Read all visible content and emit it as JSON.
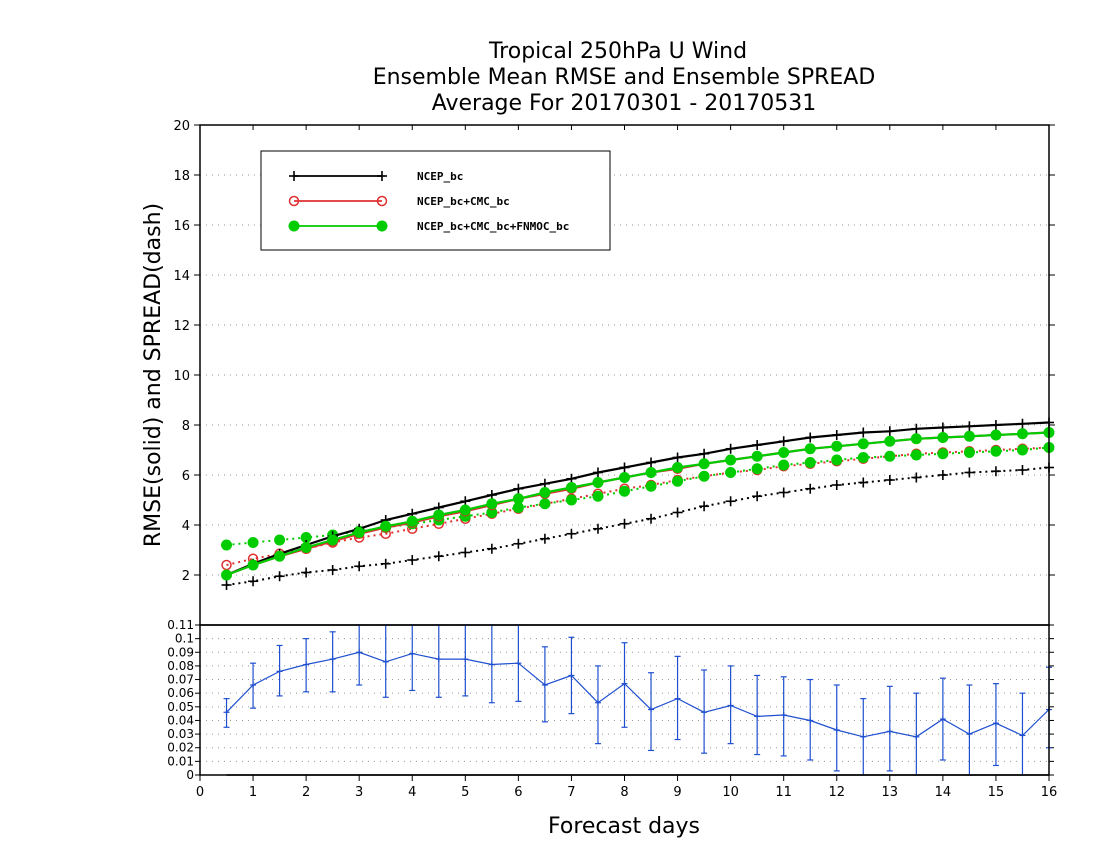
{
  "chart_data": [
    {
      "type": "line",
      "title": [
        "Tropical 250hPa U Wind",
        "Ensemble Mean RMSE and Ensemble SPREAD",
        "Average For 20170301 - 20170531"
      ],
      "ylabel": "RMSE(solid)  and  SPREAD(dash)",
      "xlim": [
        0,
        16
      ],
      "ylim": [
        0,
        20
      ],
      "yticks": [
        2,
        4,
        6,
        8,
        10,
        12,
        14,
        16,
        18,
        20
      ],
      "grid": true,
      "legend_position": "top-left",
      "x": [
        0.5,
        1,
        1.5,
        2,
        2.5,
        3,
        3.5,
        4,
        4.5,
        5,
        5.5,
        6,
        6.5,
        7,
        7.5,
        8,
        8.5,
        9,
        9.5,
        10,
        10.5,
        11,
        11.5,
        12,
        12.5,
        13,
        13.5,
        14,
        14.5,
        15,
        15.5,
        16
      ],
      "series": [
        {
          "name": "NCEP_bc",
          "metric": "RMSE",
          "style": "solid",
          "marker": "plus",
          "color": "#000000",
          "values": [
            2.0,
            2.45,
            2.85,
            3.2,
            3.55,
            3.85,
            4.2,
            4.45,
            4.7,
            4.95,
            5.2,
            5.45,
            5.65,
            5.85,
            6.1,
            6.3,
            6.5,
            6.7,
            6.85,
            7.05,
            7.2,
            7.35,
            7.5,
            7.6,
            7.7,
            7.75,
            7.85,
            7.9,
            7.95,
            8.0,
            8.05,
            8.1
          ]
        },
        {
          "name": "NCEP_bc+CMC_bc",
          "metric": "RMSE",
          "style": "solid",
          "marker": "open-circle",
          "color": "#e03030",
          "values": [
            2.0,
            2.4,
            2.75,
            3.05,
            3.35,
            3.65,
            3.9,
            4.1,
            4.35,
            4.55,
            4.8,
            5.05,
            5.25,
            5.45,
            5.7,
            5.9,
            6.1,
            6.25,
            6.45,
            6.6,
            6.75,
            6.9,
            7.05,
            7.15,
            7.25,
            7.35,
            7.45,
            7.5,
            7.55,
            7.6,
            7.65,
            7.7
          ]
        },
        {
          "name": "NCEP_bc+CMC_bc+FNMOC_bc",
          "metric": "RMSE",
          "style": "solid",
          "marker": "filled-circle",
          "color": "#00cc00",
          "values": [
            2.0,
            2.4,
            2.75,
            3.1,
            3.4,
            3.7,
            3.95,
            4.15,
            4.4,
            4.6,
            4.85,
            5.05,
            5.3,
            5.5,
            5.7,
            5.9,
            6.1,
            6.3,
            6.45,
            6.6,
            6.75,
            6.9,
            7.05,
            7.15,
            7.25,
            7.35,
            7.45,
            7.5,
            7.55,
            7.6,
            7.65,
            7.7
          ]
        },
        {
          "name": "NCEP_bc",
          "metric": "SPREAD",
          "style": "dotted",
          "marker": "plus",
          "color": "#000000",
          "values": [
            1.6,
            1.75,
            1.95,
            2.1,
            2.2,
            2.35,
            2.45,
            2.6,
            2.75,
            2.9,
            3.05,
            3.25,
            3.45,
            3.65,
            3.85,
            4.05,
            4.25,
            4.5,
            4.75,
            4.95,
            5.15,
            5.3,
            5.45,
            5.6,
            5.7,
            5.8,
            5.9,
            6.0,
            6.1,
            6.15,
            6.2,
            6.3
          ]
        },
        {
          "name": "NCEP_bc+CMC_bc",
          "metric": "SPREAD",
          "style": "dotted",
          "marker": "open-circle",
          "color": "#e03030",
          "values": [
            2.4,
            2.65,
            2.85,
            3.05,
            3.3,
            3.5,
            3.65,
            3.85,
            4.05,
            4.25,
            4.45,
            4.65,
            4.85,
            5.05,
            5.25,
            5.45,
            5.6,
            5.8,
            5.95,
            6.1,
            6.2,
            6.35,
            6.45,
            6.55,
            6.65,
            6.75,
            6.85,
            6.9,
            6.95,
            7.0,
            7.05,
            7.1
          ]
        },
        {
          "name": "NCEP_bc+CMC_bc+FNMOC_bc",
          "metric": "SPREAD",
          "style": "dotted",
          "marker": "filled-circle",
          "color": "#00cc00",
          "values": [
            3.2,
            3.3,
            3.4,
            3.5,
            3.6,
            3.75,
            3.9,
            4.05,
            4.2,
            4.35,
            4.5,
            4.7,
            4.85,
            5.0,
            5.15,
            5.35,
            5.55,
            5.75,
            5.95,
            6.1,
            6.25,
            6.4,
            6.5,
            6.6,
            6.7,
            6.75,
            6.8,
            6.85,
            6.9,
            6.95,
            7.0,
            7.1
          ]
        }
      ]
    },
    {
      "type": "line",
      "xlabel": "Forecast days",
      "xlim": [
        0,
        16
      ],
      "xticks": [
        0,
        1,
        2,
        3,
        4,
        5,
        6,
        7,
        8,
        9,
        10,
        11,
        12,
        13,
        14,
        15,
        16
      ],
      "ylim": [
        0,
        0.11
      ],
      "yticks": [
        0,
        0.01,
        0.02,
        0.03,
        0.04,
        0.05,
        0.06,
        0.07,
        0.08,
        0.09,
        0.1,
        0.11
      ],
      "ytick_labels": [
        "0",
        "0.01",
        "0.02",
        "0.03",
        "0.04",
        "0.05",
        "0.06",
        "0.07",
        "0.08",
        "0.09",
        "0.1",
        "0.11"
      ],
      "grid": true,
      "series": [
        {
          "style": "solid",
          "color": "#1f4fd0",
          "error_bars": true,
          "x": [
            0.5,
            1,
            1.5,
            2,
            2.5,
            3,
            3.5,
            4,
            4.5,
            5,
            5.5,
            6,
            6.5,
            7,
            7.5,
            8,
            8.5,
            9,
            9.5,
            10,
            10.5,
            11,
            11.5,
            12,
            12.5,
            13,
            13.5,
            14,
            14.5,
            15,
            15.5,
            16
          ],
          "values": [
            0.046,
            0.066,
            0.076,
            0.081,
            0.085,
            0.09,
            0.083,
            0.089,
            0.085,
            0.085,
            0.081,
            0.082,
            0.066,
            0.073,
            0.053,
            0.067,
            0.048,
            0.056,
            0.046,
            0.051,
            0.043,
            0.044,
            0.04,
            0.033,
            0.028,
            0.032,
            0.028,
            0.041,
            0.03,
            0.038,
            0.029,
            0.048
          ],
          "lower": [
            0.035,
            0.049,
            0.058,
            0.061,
            0.061,
            0.066,
            0.057,
            0.062,
            0.057,
            0.058,
            0.053,
            0.054,
            0.039,
            0.045,
            0.023,
            0.035,
            0.018,
            0.026,
            0.016,
            0.023,
            0.015,
            0.014,
            0.011,
            0.003,
            0.0,
            0.003,
            0.0,
            0.011,
            0.0,
            0.007,
            0.0,
            0.02
          ],
          "upper": [
            0.056,
            0.082,
            0.095,
            0.1,
            0.105,
            0.112,
            0.11,
            0.115,
            0.113,
            0.112,
            0.11,
            0.11,
            0.094,
            0.101,
            0.08,
            0.097,
            0.075,
            0.087,
            0.077,
            0.08,
            0.073,
            0.072,
            0.07,
            0.066,
            0.056,
            0.065,
            0.06,
            0.071,
            0.066,
            0.067,
            0.06,
            0.079
          ]
        },
        {
          "style": "solid",
          "color": "#000000",
          "values": [
            0,
            0
          ],
          "x": [
            0.5,
            16
          ]
        }
      ]
    }
  ]
}
